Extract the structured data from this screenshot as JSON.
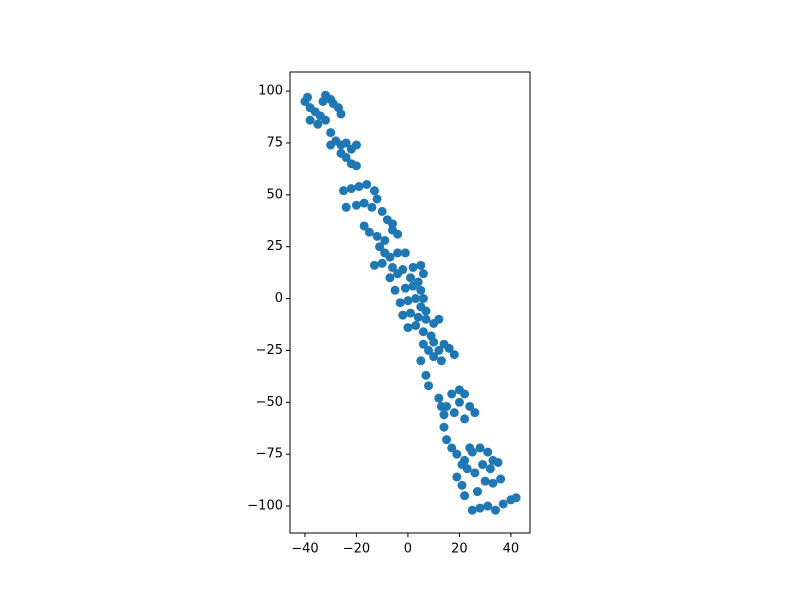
{
  "chart_data": {
    "type": "scatter",
    "color": "#1f77b4",
    "x": [
      -40,
      -38,
      -36,
      -34,
      -32,
      -38,
      -35,
      -30,
      -32,
      -29,
      -27,
      -26,
      -39,
      -33,
      -30,
      -28,
      -26,
      -24,
      -22,
      -20,
      -30,
      -26,
      -24,
      -22,
      -20,
      -25,
      -22,
      -19,
      -16,
      -13,
      -12,
      -24,
      -20,
      -17,
      -14,
      -10,
      -8,
      -6,
      -17,
      -15,
      -12,
      -9,
      -6,
      -4,
      -11,
      -9,
      -7,
      -4,
      -1,
      -13,
      -10,
      -6,
      -2,
      2,
      5,
      -7,
      -4,
      1,
      4,
      6,
      -5,
      -1,
      2,
      5,
      -3,
      0,
      3,
      6,
      5,
      7,
      -2,
      1,
      4,
      7,
      10,
      12,
      0,
      3,
      6,
      9,
      6,
      8,
      10,
      12,
      14,
      16,
      18,
      10,
      13,
      5,
      7,
      8,
      12,
      15,
      18,
      20,
      22,
      24,
      26,
      14,
      17,
      20,
      13,
      22,
      14,
      15,
      17,
      19,
      22,
      25,
      28,
      31,
      33,
      23,
      26,
      29,
      32,
      35,
      24,
      21,
      19,
      21,
      22,
      25,
      28,
      31,
      34,
      37,
      40,
      42,
      30,
      33,
      36,
      27
    ],
    "y": [
      95,
      92,
      90,
      88,
      86,
      86,
      84,
      96,
      98,
      94,
      92,
      89,
      97,
      95,
      80,
      76,
      74,
      75,
      72,
      74,
      74,
      70,
      68,
      65,
      64,
      52,
      53,
      54,
      55,
      52,
      48,
      44,
      45,
      46,
      44,
      42,
      38,
      36,
      35,
      32,
      30,
      28,
      33,
      31,
      25,
      22,
      20,
      22,
      22,
      16,
      17,
      15,
      14,
      15,
      16,
      10,
      12,
      10,
      8,
      12,
      4,
      5,
      6,
      4,
      -2,
      -1,
      0,
      0,
      -4,
      -6,
      -8,
      -7,
      -9,
      -10,
      -12,
      -10,
      -14,
      -13,
      -16,
      -18,
      -22,
      -25,
      -28,
      -25,
      -22,
      -24,
      -27,
      -21,
      -30,
      -30,
      -37,
      -42,
      -48,
      -52,
      -55,
      -50,
      -46,
      -52,
      -55,
      -56,
      -46,
      -44,
      -52,
      -58,
      -62,
      -68,
      -72,
      -75,
      -78,
      -74,
      -72,
      -74,
      -78,
      -82,
      -84,
      -80,
      -82,
      -79,
      -72,
      -80,
      -86,
      -90,
      -95,
      -102,
      -101,
      -100,
      -102,
      -99,
      -97,
      -96,
      -88,
      -89,
      -87,
      -93
    ],
    "xlim": [
      -45.8,
      47.4
    ],
    "ylim": [
      -113,
      109.2
    ],
    "xticks": [
      {
        "value": -40,
        "label": "−40"
      },
      {
        "value": -20,
        "label": "−20"
      },
      0,
      20,
      40
    ],
    "yticks": [
      {
        "value": -100,
        "label": "−100"
      },
      {
        "value": -75,
        "label": "−75"
      },
      {
        "value": -50,
        "label": "−50"
      },
      {
        "value": -25,
        "label": "−25"
      },
      0,
      25,
      50,
      75,
      100
    ]
  }
}
